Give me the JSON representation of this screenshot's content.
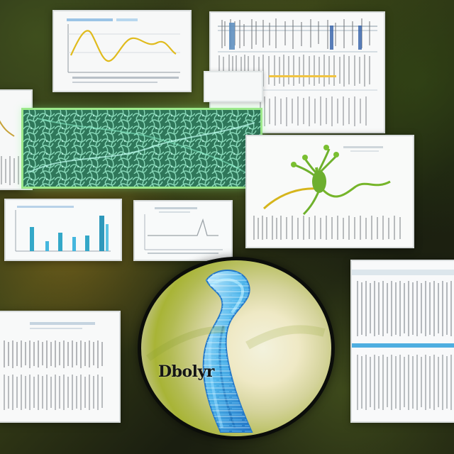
{
  "theme": {
    "background_dark": "#1f2414",
    "panel_white": "#f4f6f6",
    "accent_green": "#9ce98b",
    "accent_blue": "#47b8e6",
    "accent_yellow": "#f2c11f"
  },
  "circle_panel": {
    "label": "Dbolyr"
  },
  "icons": {
    "spine": "spine-icon",
    "plant": "plant-icon"
  }
}
